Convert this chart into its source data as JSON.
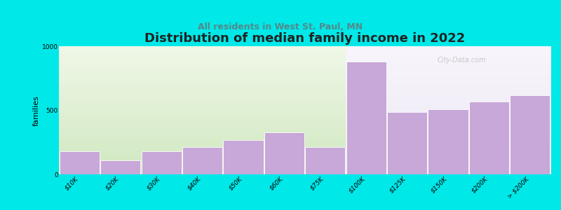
{
  "title": "Distribution of median family income in 2022",
  "subtitle": "All residents in West St. Paul, MN",
  "ylabel": "families",
  "categories": [
    "$10K",
    "$20K",
    "$30K",
    "$40K",
    "$50K",
    "$60K",
    "$75K",
    "$100K",
    "$125K",
    "$150K",
    "$200K",
    "> $200K"
  ],
  "values": [
    185,
    110,
    185,
    215,
    270,
    330,
    215,
    880,
    490,
    510,
    570,
    620
  ],
  "bar_color": "#c8a8d8",
  "bar_edge_color": "#ffffff",
  "background_color": "#00e8e8",
  "plot_bg_left_top": "#d8ecd0",
  "plot_bg_left_bottom": "#e8f5e0",
  "plot_bg_right_top": "#f0eaf8",
  "plot_bg_right_bottom": "#f8f4fc",
  "ylim": [
    0,
    1000
  ],
  "yticks": [
    0,
    500,
    1000
  ],
  "title_fontsize": 13,
  "subtitle_fontsize": 9,
  "ylabel_fontsize": 8,
  "tick_fontsize": 6.5,
  "watermark": "City-Data.com",
  "split_index": 7
}
